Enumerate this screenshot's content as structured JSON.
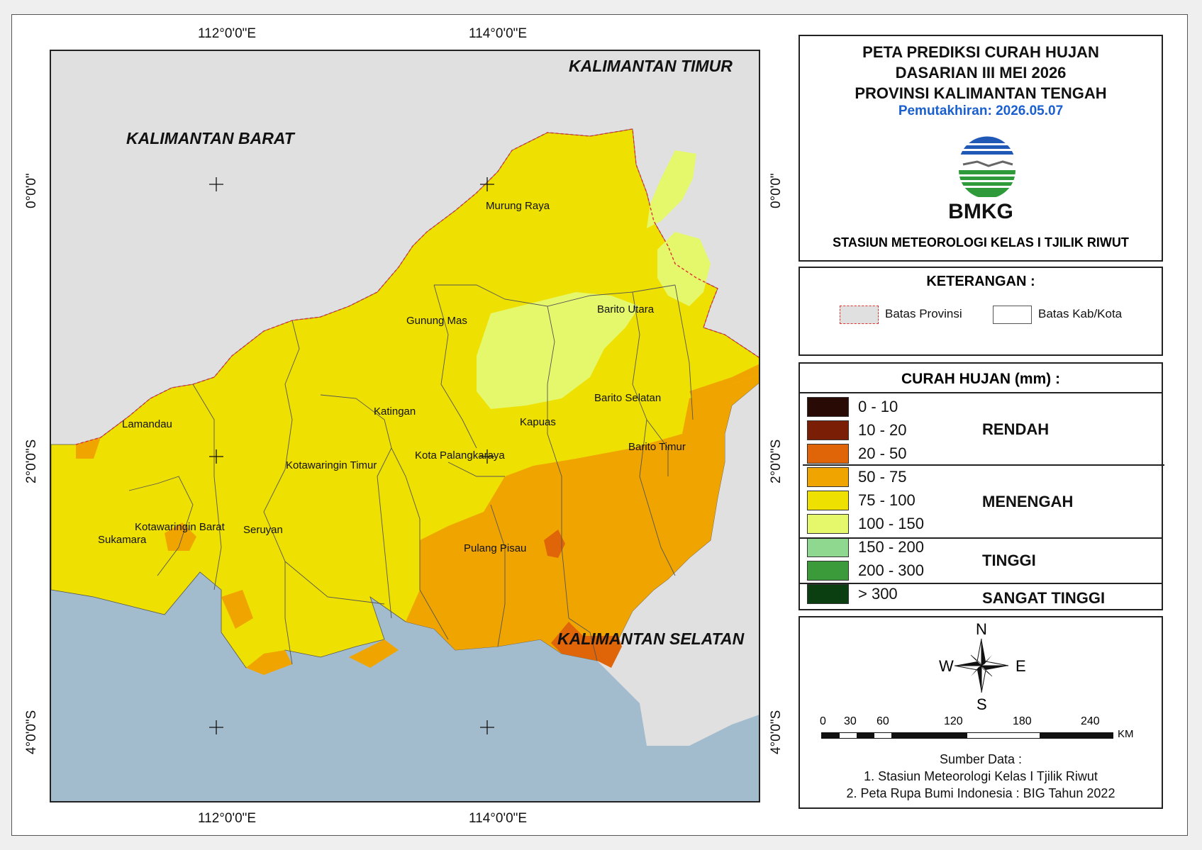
{
  "title": {
    "line1": "PETA PREDIKSI CURAH HUJAN",
    "line2": "DASARIAN III MEI 2026",
    "line3": "PROVINSI KALIMANTAN TENGAH",
    "update": "Pemutakhiran: 2026.05.07",
    "logo_text": "BMKG",
    "station": "STASIUN METEOROLOGI KELAS I TJILIK RIWUT"
  },
  "grid": {
    "top": [
      "112°0'0\"E",
      "114°0'0\"E"
    ],
    "bottom": [
      "112°0'0\"E",
      "114°0'0\"E"
    ],
    "left": [
      "0°0'0\"",
      "2°0'0\"S",
      "4°0'0\"S"
    ],
    "right": [
      "0°0'0\"",
      "2°0'0\"S",
      "4°0'0\"S"
    ]
  },
  "regions": {
    "kalbar": "KALIMANTAN BARAT",
    "kaltim": "KALIMANTAN TIMUR",
    "kalsel": "KALIMANTAN SELATAN"
  },
  "kabupaten": [
    "Murung Raya",
    "Gunung Mas",
    "Barito Utara",
    "Katingan",
    "Barito Selatan",
    "Lamandau",
    "Kapuas",
    "Kota Palangkaraya",
    "Barito Timur",
    "Kotawaringin Timur",
    "Kotawaringin Barat",
    "Seruyan",
    "Sukamara",
    "Pulang Pisau"
  ],
  "legend": {
    "title": "KETERANGAN :",
    "prov": "Batas Provinsi",
    "kab": "Batas Kab/Kota"
  },
  "rain": {
    "title": "CURAH HUJAN (mm) :",
    "classes": [
      {
        "label": "0 - 10",
        "color": "#2a0a05"
      },
      {
        "label": "10 - 20",
        "color": "#7a1f05"
      },
      {
        "label": "20 - 50",
        "color": "#e06408"
      },
      {
        "label": "50 - 75",
        "color": "#f0a400"
      },
      {
        "label": "75 - 100",
        "color": "#eee000"
      },
      {
        "label": "100 - 150",
        "color": "#e5f86b"
      },
      {
        "label": "150 - 200",
        "color": "#8fd88f"
      },
      {
        "label": "200 - 300",
        "color": "#3b9b3b"
      },
      {
        "label": "> 300",
        "color": "#0b3f12"
      }
    ],
    "categories": [
      "RENDAH",
      "MENENGAH",
      "TINGGI",
      "SANGAT TINGGI"
    ]
  },
  "compass": {
    "n": "N",
    "s": "S",
    "e": "E",
    "w": "W"
  },
  "scale": {
    "ticks": [
      "0",
      "30",
      "60",
      "120",
      "180",
      "240"
    ],
    "unit": "KM"
  },
  "source": {
    "title": "Sumber Data :",
    "line1": "1. Stasiun Meteorologi Kelas I Tjilik Riwut",
    "line2": "2. Peta Rupa Bumi Indonesia : BIG Tahun 2022"
  },
  "colors": {
    "sea": "#a2bccd",
    "outside": "#e0e0e0",
    "c75": "#eee000",
    "c100": "#e5f86b",
    "c50": "#f0a400",
    "c20": "#e06408"
  }
}
